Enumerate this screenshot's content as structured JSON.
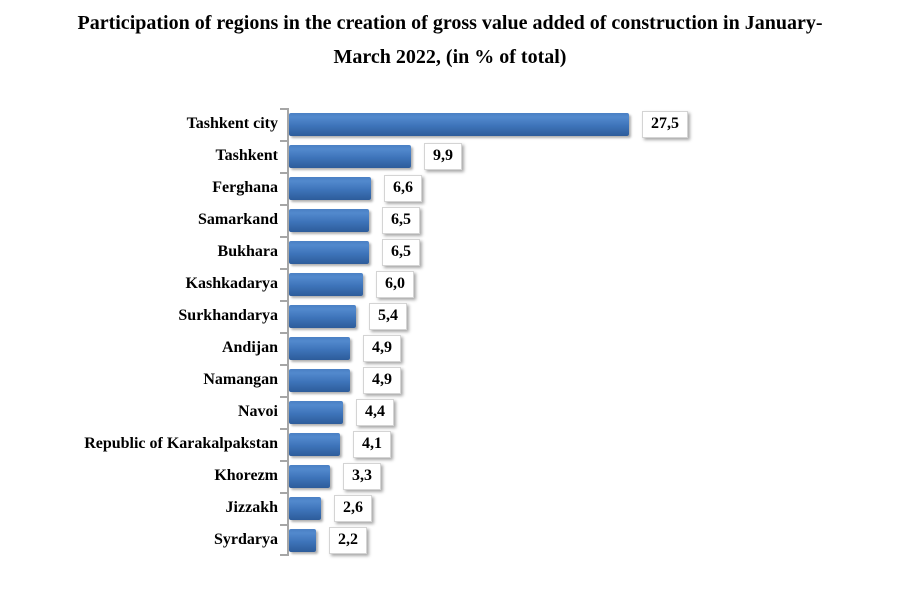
{
  "title": {
    "line1": "Participation of regions in the creation of gross value added of construction in January-",
    "line2": "March 2022, (in % of total)"
  },
  "chart_data": {
    "type": "bar",
    "orientation": "horizontal",
    "title": "Participation of regions in the creation of gross value added of construction in January-March 2022, (in % of total)",
    "xlabel": "",
    "ylabel": "",
    "xlim": [
      0,
      29
    ],
    "grid": false,
    "legend": false,
    "decimal_separator": ",",
    "categories": [
      "Tashkent city",
      "Tashkent",
      "Ferghana",
      "Samarkand",
      "Bukhara",
      "Kashkadarya",
      "Surkhandarya",
      "Andijan",
      "Namangan",
      "Navoi",
      "Republic of Karakalpakstan",
      "Khorezm",
      "Jizzakh",
      "Syrdarya"
    ],
    "values": [
      27.5,
      9.9,
      6.6,
      6.5,
      6.5,
      6.0,
      5.4,
      4.9,
      4.9,
      4.4,
      4.1,
      3.3,
      2.6,
      2.2
    ],
    "value_labels": [
      "27,5",
      "9,9",
      "6,6",
      "6,5",
      "6,5",
      "6,0",
      "5,4",
      "4,9",
      "4,9",
      "4,4",
      "4,1",
      "3,3",
      "2,6",
      "2,2"
    ],
    "colors": {
      "bar_top": "#4a80c4",
      "bar_mid": "#3e74ba",
      "bar_bottom": "#2d5c9a",
      "axis": "#a6a6a6",
      "value_box_bg": "#ffffff",
      "value_box_border": "#d4d4d4",
      "text": "#000000",
      "background": "#ffffff"
    }
  }
}
